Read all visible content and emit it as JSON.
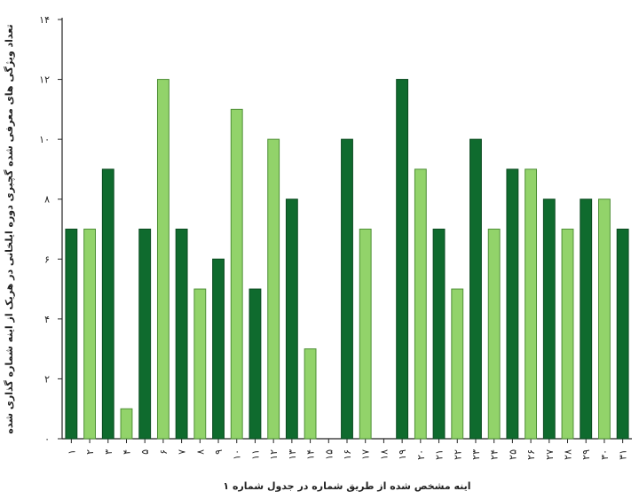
{
  "chart_data": {
    "type": "bar",
    "categories": [
      "۱",
      "۲",
      "۳",
      "۴",
      "۵",
      "۶",
      "۷",
      "۸",
      "۹",
      "۱۰",
      "۱۱",
      "۱۲",
      "۱۳",
      "۱۴",
      "۱۵",
      "۱۶",
      "۱۷",
      "۱۸",
      "۱۹",
      "۲۰",
      "۲۱",
      "۲۲",
      "۲۳",
      "۲۴",
      "۲۵",
      "۲۶",
      "۲۷",
      "۲۸",
      "۲۹",
      "۳۰",
      "۳۱"
    ],
    "values": [
      7,
      7,
      9,
      1,
      7,
      12,
      7,
      5,
      6,
      11,
      5,
      10,
      8,
      3,
      0,
      10,
      7,
      0,
      12,
      9,
      7,
      5,
      10,
      7,
      9,
      9,
      8,
      7,
      8,
      8,
      7
    ],
    "bar_shades": [
      "dark",
      "light",
      "dark",
      "light",
      "dark",
      "light",
      "dark",
      "light",
      "dark",
      "light",
      "dark",
      "light",
      "dark",
      "light",
      "dark",
      "dark",
      "light",
      "dark",
      "dark",
      "light",
      "dark",
      "light",
      "dark",
      "light",
      "dark",
      "light",
      "dark",
      "light",
      "dark",
      "light",
      "dark"
    ],
    "colors": {
      "dark": "#0f6b2e",
      "light": "#92d36a",
      "dark_stroke": "#0a4a1f",
      "light_stroke": "#4e8f36"
    },
    "ylim": [
      0,
      14
    ],
    "yticks": [
      {
        "value": 0,
        "label": "۰"
      },
      {
        "value": 2,
        "label": "۲"
      },
      {
        "value": 4,
        "label": "۴"
      },
      {
        "value": 6,
        "label": "۶"
      },
      {
        "value": 8,
        "label": "۸"
      },
      {
        "value": 10,
        "label": "۱۰"
      },
      {
        "value": 12,
        "label": "۱۲"
      },
      {
        "value": 14,
        "label": "۱۴"
      }
    ],
    "xlabel": "اینه مشخص شده از طریق شماره در جدول شماره ۱",
    "ylabel": "تعداد ویژگی های معرفی شده گچبری دوره ایلخانی در هریک از اینه شماره گذاری شده",
    "grid": false
  }
}
